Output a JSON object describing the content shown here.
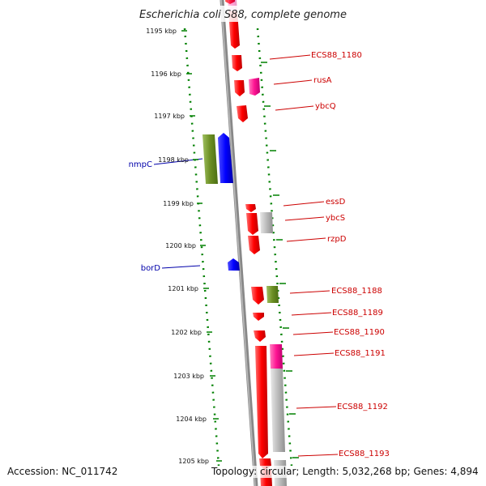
{
  "title": "Escherichia coli S88, complete genome",
  "accession": "Accession: NC_011742",
  "topology": "Topology: circular; Length: 5,032,268 bp; Genes: 4,894",
  "kbp_ticks": [
    "1195 kbp",
    "1196 kbp",
    "1197 kbp",
    "1198 kbp",
    "1199 kbp",
    "1200 kbp",
    "1201 kbp",
    "1202 kbp",
    "1203 kbp",
    "1204 kbp",
    "1205 kbp"
  ],
  "colors": {
    "forward": "#ff0000",
    "reverse": "#0000ff",
    "pink": "#ff1493",
    "gray": "#bbbbbb",
    "olive": "#6b8e23",
    "tick": "#008000",
    "label_fwd": "#cc0000",
    "label_rev": "#0000aa"
  },
  "right_labels": [
    "ECS88_1180",
    "rusA",
    "ybcQ",
    "essD",
    "ybcS",
    "rzpD",
    "ECS88_1188",
    "ECS88_1189",
    "ECS88_1190",
    "ECS88_1191",
    "ECS88_1192",
    "ECS88_1193"
  ],
  "left_labels": [
    "nmpC",
    "borD"
  ]
}
